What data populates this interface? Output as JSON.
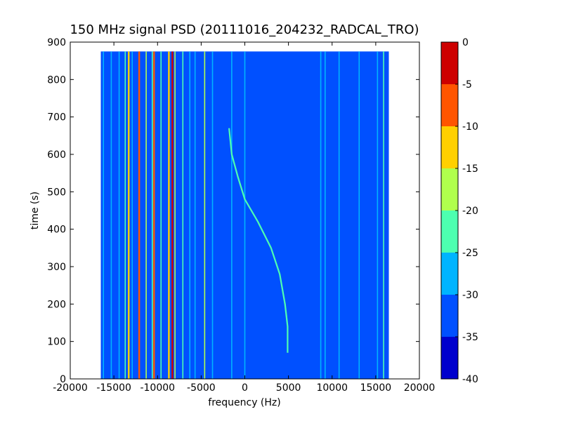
{
  "chart_data": {
    "type": "heatmap",
    "title": "150 MHz signal PSD (20111016_204232_RADCAL_TRO)",
    "xlabel": "frequency (Hz)",
    "ylabel": "time (s)",
    "xlim": [
      -20000,
      20000
    ],
    "ylim": [
      0,
      900
    ],
    "x_ticks": [
      -20000,
      -15000,
      -10000,
      -5000,
      0,
      5000,
      10000,
      15000,
      20000
    ],
    "y_ticks": [
      0,
      100,
      200,
      300,
      400,
      500,
      600,
      700,
      800,
      900
    ],
    "data_extent": {
      "x": [
        -16500,
        16500
      ],
      "y": [
        0,
        875
      ]
    },
    "background_level": -35,
    "colorbar": {
      "levels": [
        -40,
        -35,
        -30,
        -25,
        -20,
        -15,
        -10,
        -5,
        0
      ],
      "tick_labels": [
        "-40",
        "-35",
        "-30",
        "-25",
        "-20",
        "-15",
        "-10",
        "-5",
        "0"
      ],
      "colors": [
        "#0000cd",
        "#0050ff",
        "#00b4ff",
        "#4dffb0",
        "#b0ff4d",
        "#ffd000",
        "#ff5500",
        "#cd0000"
      ]
    },
    "vertical_lines": [
      {
        "freq": -16200,
        "level": -30
      },
      {
        "freq": -15300,
        "level": -30
      },
      {
        "freq": -14400,
        "level": -30
      },
      {
        "freq": -13700,
        "level": -25
      },
      {
        "freq": -13300,
        "level": -15
      },
      {
        "freq": -12900,
        "level": -30
      },
      {
        "freq": -12100,
        "level": -10
      },
      {
        "freq": -11300,
        "level": -20
      },
      {
        "freq": -10600,
        "level": -25
      },
      {
        "freq": -10400,
        "level": -10
      },
      {
        "freq": -9600,
        "level": -25
      },
      {
        "freq": -8700,
        "level": -15
      },
      {
        "freq": -8300,
        "level": -5
      },
      {
        "freq": -8000,
        "level": -20
      },
      {
        "freq": -7100,
        "level": -25
      },
      {
        "freq": -6300,
        "level": -30
      },
      {
        "freq": -5700,
        "level": -30
      },
      {
        "freq": -4600,
        "level": -20
      },
      {
        "freq": -3700,
        "level": -30
      },
      {
        "freq": -1500,
        "level": -30
      },
      {
        "freq": 0,
        "level": -30
      },
      {
        "freq": 8700,
        "level": -30
      },
      {
        "freq": 9200,
        "level": -30
      },
      {
        "freq": 10800,
        "level": -30
      },
      {
        "freq": 13100,
        "level": -30
      },
      {
        "freq": 15200,
        "level": -30
      },
      {
        "freq": 15900,
        "level": -25
      }
    ],
    "doppler_trace": {
      "level": -25,
      "points": [
        {
          "freq": -1800,
          "time": 670
        },
        {
          "freq": -1500,
          "time": 600
        },
        {
          "freq": -800,
          "time": 540
        },
        {
          "freq": 0,
          "time": 480
        },
        {
          "freq": 1500,
          "time": 420
        },
        {
          "freq": 3000,
          "time": 350
        },
        {
          "freq": 4000,
          "time": 280
        },
        {
          "freq": 4600,
          "time": 200
        },
        {
          "freq": 4900,
          "time": 140
        },
        {
          "freq": 4900,
          "time": 70
        }
      ]
    }
  }
}
